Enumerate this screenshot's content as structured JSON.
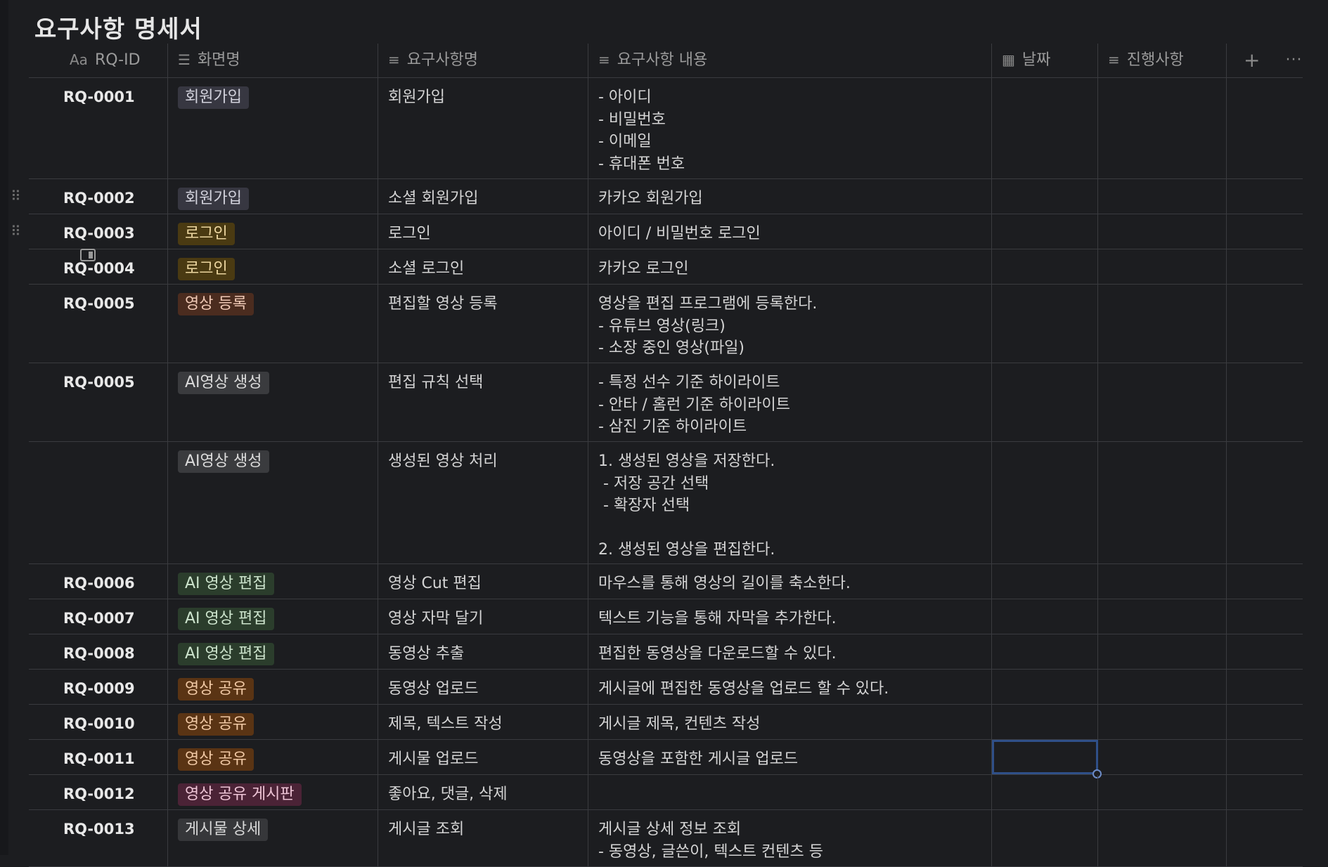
{
  "page": {
    "title": "요구사항 명세서"
  },
  "columns": [
    {
      "label": "RQ-ID",
      "icon": "title-aa-icon"
    },
    {
      "label": "화면명",
      "icon": "list-icon"
    },
    {
      "label": "요구사항명",
      "icon": "text-icon"
    },
    {
      "label": "요구사항 내용",
      "icon": "text-icon"
    },
    {
      "label": "날짜",
      "icon": "calendar-icon"
    },
    {
      "label": "진행사항",
      "icon": "text-icon"
    }
  ],
  "header_actions": {
    "add": "+",
    "more": "···"
  },
  "rows": [
    {
      "id": "RQ-0001",
      "screen": "회원가입",
      "tag": "signup",
      "name": "회원가입",
      "content": "- 아이디\n- 비밀번호\n- 이메일\n- 휴대폰 번호",
      "date": "",
      "progress": ""
    },
    {
      "id": "RQ-0002",
      "screen": "회원가입",
      "tag": "signup",
      "name": "소셜 회원가입",
      "content": "카카오 회원가입",
      "date": "",
      "progress": ""
    },
    {
      "id": "RQ-0003",
      "screen": "로그인",
      "tag": "login",
      "name": "로그인",
      "content": "아이디 / 비밀번호 로그인",
      "date": "",
      "progress": ""
    },
    {
      "id": "RQ-0004",
      "screen": "로그인",
      "tag": "login",
      "name": "소셜 로그인",
      "content": "카카오 로그인",
      "date": "",
      "progress": ""
    },
    {
      "id": "RQ-0005",
      "screen": "영상 등록",
      "tag": "upload",
      "name": "편집할 영상 등록",
      "content": "영상을 편집 프로그램에 등록한다.\n- 유튜브 영상(링크)\n- 소장 중인 영상(파일)",
      "date": "",
      "progress": ""
    },
    {
      "id": "RQ-0005",
      "screen": "AI영상 생성",
      "tag": "ai",
      "name": "편집 규칙 선택",
      "content": "- 특정 선수 기준 하이라이트\n- 안타 / 홈런 기준 하이라이트\n- 삼진 기준 하이라이트",
      "date": "",
      "progress": ""
    },
    {
      "id": "",
      "screen": "AI영상 생성",
      "tag": "ai",
      "name": "생성된 영상 처리",
      "content": "1. 생성된 영상을 저장한다.\n - 저장 공간 선택\n - 확장자 선택\n\n2. 생성된 영상을 편집한다.",
      "date": "",
      "progress": ""
    },
    {
      "id": "RQ-0006",
      "screen": "AI 영상 편집",
      "tag": "edit",
      "name": "영상 Cut 편집",
      "content": "마우스를 통해 영상의 길이를 축소한다.",
      "date": "",
      "progress": ""
    },
    {
      "id": "RQ-0007",
      "screen": "AI 영상 편집",
      "tag": "edit",
      "name": "영상 자막 달기",
      "content": "텍스트 기능을 통해 자막을 추가한다.",
      "date": "",
      "progress": ""
    },
    {
      "id": "RQ-0008",
      "screen": "AI 영상 편집",
      "tag": "edit",
      "name": "동영상 추출",
      "content": "편집한 동영상을 다운로드할 수 있다.",
      "date": "",
      "progress": ""
    },
    {
      "id": "RQ-0009",
      "screen": "영상 공유",
      "tag": "share",
      "name": "동영상 업로드",
      "content": "게시글에 편집한 동영상을 업로드 할 수 있다.",
      "date": "",
      "progress": ""
    },
    {
      "id": "RQ-0010",
      "screen": "영상 공유",
      "tag": "share",
      "name": "제목, 텍스트 작성",
      "content": "게시글 제목, 컨텐츠 작성",
      "date": "",
      "progress": ""
    },
    {
      "id": "RQ-0011",
      "screen": "영상 공유",
      "tag": "share",
      "name": "게시물 업로드",
      "content": "동영상을 포함한 게시글 업로드",
      "date": "",
      "progress": ""
    },
    {
      "id": "RQ-0012",
      "screen": "영상 공유 게시판",
      "tag": "board",
      "name": "좋아요, 댓글, 삭제",
      "content": "",
      "date": "",
      "progress": ""
    },
    {
      "id": "RQ-0013",
      "screen": "게시물 상세",
      "tag": "detail",
      "name": "게시글 조회",
      "content": "게시글 상세 정보 조회\n- 동영상, 글쓴이, 텍스트 컨텐츠 등",
      "date": "",
      "progress": ""
    }
  ]
}
